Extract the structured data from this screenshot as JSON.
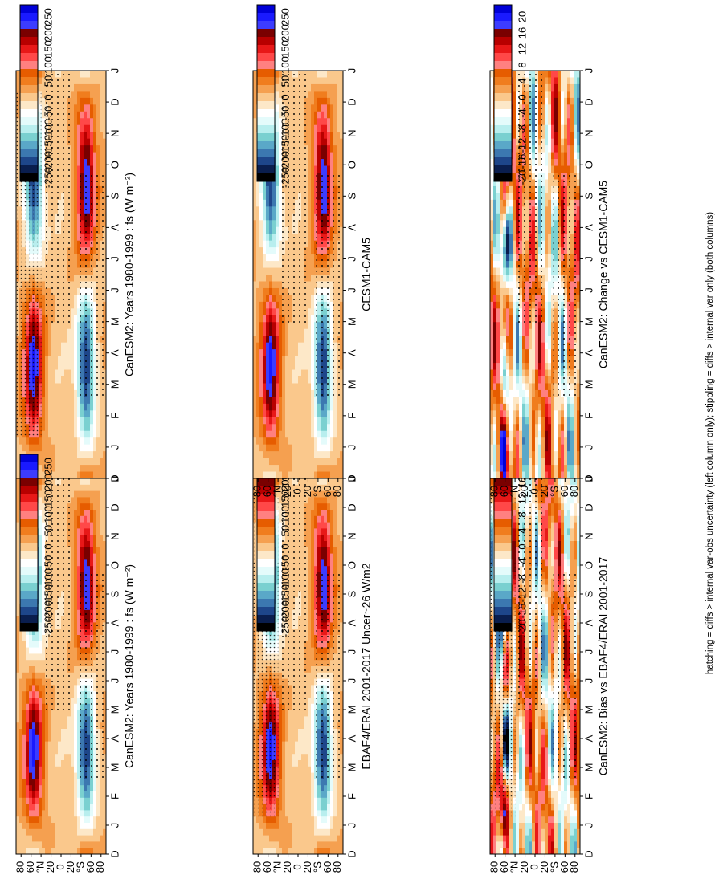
{
  "chart_data": [
    {
      "id": "p_model_left",
      "type": "heatmap",
      "title": "CanESM2: Years 1980-1999 : fs (W m⁻²)",
      "x_axis": {
        "label": "month",
        "ticks": [
          "D",
          "J",
          "F",
          "M",
          "A",
          "M",
          "J",
          "J",
          "A",
          "S",
          "O",
          "N",
          "D",
          "J"
        ]
      },
      "y_axis": {
        "label": "latitude",
        "range": [
          -90,
          90
        ],
        "ticks": [
          "80",
          "60",
          "°N",
          "20",
          "0",
          "20",
          "°S",
          "60",
          "80"
        ]
      },
      "colorbar": {
        "kind": "flux",
        "labels": [
          "250",
          "200",
          "150",
          "100",
          "50",
          "0",
          "-50",
          "-100",
          "-150",
          "-200",
          "-250"
        ]
      },
      "stippling": true,
      "hatching": true
    },
    {
      "id": "p_model_right",
      "type": "heatmap",
      "title": "CanESM2: Years 1980-1999 : fs (W m⁻²)",
      "x_axis": {
        "label": "month",
        "ticks": [
          "D",
          "J",
          "F",
          "M",
          "A",
          "M",
          "J",
          "J",
          "A",
          "S",
          "O",
          "N",
          "D",
          "J"
        ]
      },
      "y_axis": {
        "label": "latitude",
        "range": [
          -90,
          90
        ],
        "ticks": [
          "80",
          "60",
          "°N",
          "20",
          "0",
          "20",
          "°S",
          "60",
          "80"
        ]
      },
      "colorbar": {
        "kind": "flux",
        "labels": [
          "250",
          "200",
          "150",
          "100",
          "50",
          "0",
          "-50",
          "-100",
          "-150",
          "-200",
          "-250"
        ]
      },
      "stippling": true,
      "hatching": false
    },
    {
      "id": "p_obs",
      "type": "heatmap",
      "title": "EBAF4/ERAI 2001-2017 Uncer~26 W/m2",
      "x_axis": {
        "label": "month",
        "ticks": [
          "D",
          "J",
          "F",
          "M",
          "A",
          "M",
          "J",
          "J",
          "A",
          "S",
          "O",
          "N",
          "D",
          "J"
        ]
      },
      "y_axis": {
        "label": "latitude",
        "range": [
          -90,
          90
        ],
        "ticks": [
          "80",
          "60",
          "°N",
          "20",
          "0",
          "20",
          "°S",
          "60",
          "80"
        ]
      },
      "colorbar": {
        "kind": "flux",
        "labels": [
          "250",
          "200",
          "150",
          "100",
          "50",
          "0",
          "-50",
          "-100",
          "-150",
          "-200",
          "-250"
        ]
      },
      "stippling": true,
      "hatching": true
    },
    {
      "id": "p_cesm",
      "type": "heatmap",
      "title": "CESM1-CAM5",
      "x_axis": {
        "label": "month",
        "ticks": [
          "D",
          "J",
          "F",
          "M",
          "A",
          "M",
          "J",
          "J",
          "A",
          "S",
          "O",
          "N",
          "D",
          "J"
        ]
      },
      "y_axis": {
        "label": "latitude",
        "range": [
          -90,
          90
        ],
        "ticks": [
          "80",
          "60",
          "°N",
          "20",
          "0",
          "20",
          "°S",
          "60",
          "80"
        ]
      },
      "colorbar": {
        "kind": "flux",
        "labels": [
          "250",
          "200",
          "150",
          "100",
          "50",
          "0",
          "-50",
          "-100",
          "-150",
          "-200",
          "-250"
        ]
      },
      "stippling": true,
      "hatching": false
    },
    {
      "id": "p_bias",
      "type": "heatmap",
      "title": "CanESM2: Bias vs EBAF4/ERAI 2001-2017",
      "x_axis": {
        "label": "month",
        "ticks": [
          "D",
          "J",
          "F",
          "M",
          "A",
          "M",
          "J",
          "J",
          "A",
          "S",
          "O",
          "N",
          "D",
          "J"
        ]
      },
      "y_axis": {
        "label": "latitude",
        "range": [
          -90,
          90
        ],
        "ticks": [
          "80",
          "60",
          "°N",
          "20",
          "0",
          "20",
          "°S",
          "60",
          "80"
        ]
      },
      "colorbar": {
        "kind": "diff",
        "labels": [
          "20",
          "16",
          "12",
          "8",
          "4",
          "0",
          "-4",
          "-8",
          "-12",
          "-16",
          "-20"
        ]
      },
      "stippling": true,
      "hatching": true
    },
    {
      "id": "p_change",
      "type": "heatmap",
      "title": "CanESM2: Change vs CESM1-CAM5",
      "x_axis": {
        "label": "month",
        "ticks": [
          "D",
          "J",
          "F",
          "M",
          "A",
          "M",
          "J",
          "J",
          "A",
          "S",
          "O",
          "N",
          "D",
          "J"
        ]
      },
      "y_axis": {
        "label": "latitude",
        "range": [
          -90,
          90
        ],
        "ticks": [
          "80",
          "60",
          "°N",
          "20",
          "0",
          "20",
          "°S",
          "60",
          "80"
        ]
      },
      "colorbar": {
        "kind": "diff",
        "labels": [
          "20",
          "16",
          "12",
          "8",
          "4",
          "0",
          "-4",
          "-8",
          "-12",
          "-16",
          "-20"
        ]
      },
      "stippling": true,
      "hatching": false
    }
  ],
  "footnote": "hatching = diffs > internal var-obs uncertainty (left column only); stippling = diffs > internal var only (both columns)",
  "colors": {
    "ramp": [
      "#0000d8",
      "#1a1aff",
      "#3c3cff",
      "#7a0000",
      "#b80000",
      "#e81818",
      "#ff4848",
      "#ff8080",
      "#e65c00",
      "#f07d1e",
      "#f5a050",
      "#fac88c",
      "#fde8c8",
      "#ffffff",
      "#e4fbfb",
      "#b8eeee",
      "#7ad0d0",
      "#5aa8c8",
      "#3c78b0",
      "#1e468a",
      "#0a1e4e",
      "#000000"
    ]
  }
}
